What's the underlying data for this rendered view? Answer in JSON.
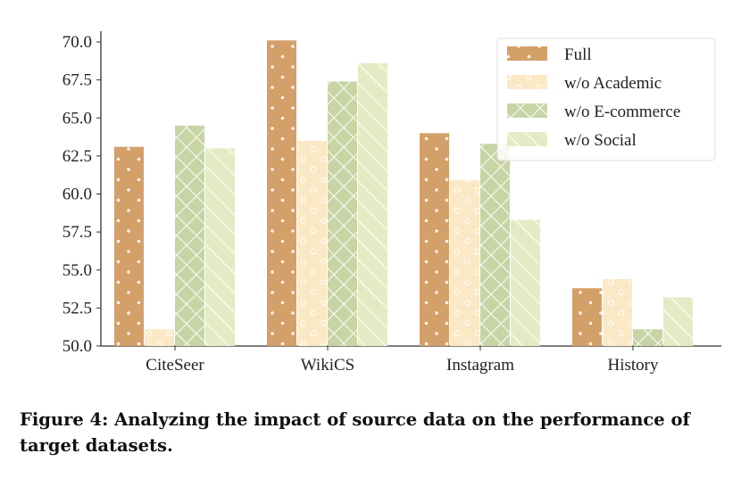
{
  "chart_data": {
    "type": "bar",
    "title": "",
    "xlabel": "",
    "ylabel": "",
    "categories": [
      "CiteSeer",
      "WikiCS",
      "Instagram",
      "History"
    ],
    "ylim": [
      50.0,
      70.0
    ],
    "yticks": [
      "50.0",
      "52.5",
      "55.0",
      "57.5",
      "60.0",
      "62.5",
      "65.0",
      "67.5",
      "70.0"
    ],
    "legend_position": "top-right",
    "series": [
      {
        "name": "Full",
        "color": "#d4a06a",
        "pattern": "dots",
        "values": [
          63.1,
          70.1,
          64.0,
          53.8
        ]
      },
      {
        "name": "w/o Academic",
        "color": "#fbe8c4",
        "pattern": "circles",
        "values": [
          51.1,
          63.5,
          60.9,
          54.4
        ]
      },
      {
        "name": "w/o E-commerce",
        "color": "#c8d4a4",
        "pattern": "cross",
        "values": [
          64.5,
          67.4,
          63.3,
          51.1
        ]
      },
      {
        "name": "w/o Social",
        "color": "#e4ebc4",
        "pattern": "diagonal",
        "values": [
          63.0,
          68.6,
          58.3,
          53.2
        ]
      }
    ]
  },
  "caption": "Figure 4: Analyzing the impact of source data on the performance of target datasets."
}
